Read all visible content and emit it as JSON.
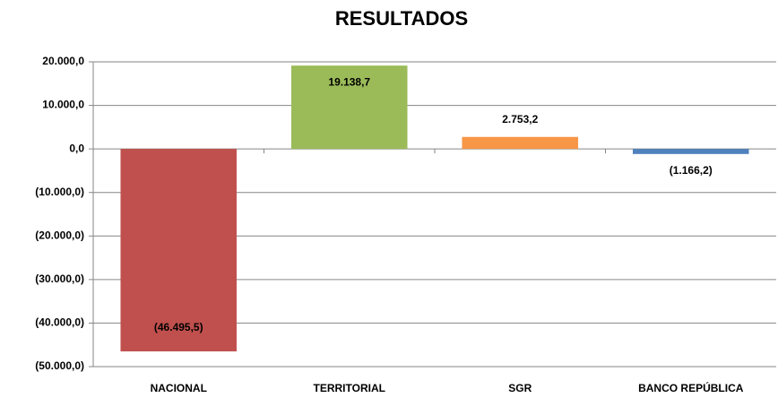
{
  "chart_data": {
    "type": "bar",
    "title": "RESULTADOS",
    "categories": [
      "NACIONAL",
      "TERRITORIAL",
      "SGR",
      "BANCO REPÚBLICA"
    ],
    "values": [
      -46495.5,
      19138.7,
      2753.2,
      -1166.2
    ],
    "value_labels": [
      "(46.495,5)",
      "19.138,7",
      "2.753,2",
      "(1.166,2)"
    ],
    "colors": [
      "#c0504d",
      "#9bbb59",
      "#f79646",
      "#4f81bd"
    ],
    "ylim": [
      -50000,
      20000
    ],
    "yticks": [
      {
        "value": -50000,
        "label": "(50.000,0)"
      },
      {
        "value": -40000,
        "label": "(40.000,0)"
      },
      {
        "value": -30000,
        "label": "(30.000,0)"
      },
      {
        "value": -20000,
        "label": "(20.000,0)"
      },
      {
        "value": -10000,
        "label": "(10.000,0)"
      },
      {
        "value": 0,
        "label": "0,0"
      },
      {
        "value": 10000,
        "label": "10.000,0"
      },
      {
        "value": 20000,
        "label": "20.000,0"
      }
    ],
    "grid": true
  }
}
